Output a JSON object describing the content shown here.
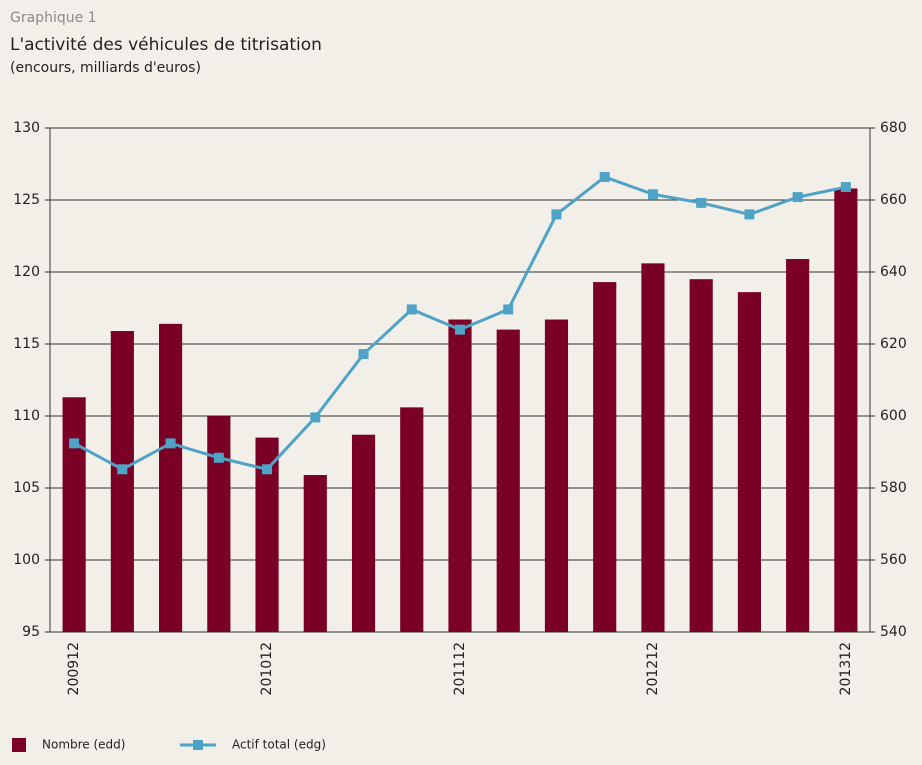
{
  "label": "Graphique 1",
  "chart_data": {
    "type": "combo",
    "title": "L'activité des véhicules de titrisation",
    "subtitle": "(encours, milliards d'euros)",
    "categories": [
      "200912",
      null,
      null,
      null,
      "201012",
      null,
      null,
      null,
      "201112",
      null,
      null,
      null,
      "201212",
      null,
      null,
      null,
      "201312"
    ],
    "series": [
      {
        "name": "Nombre (edd)",
        "kind": "bar",
        "axis": "y2",
        "color": "#7a0025",
        "values": [
          605.2,
          623.6,
          625.6,
          600,
          594,
          583.6,
          594.8,
          602.4,
          626.8,
          624,
          626.8,
          637.2,
          642.4,
          638,
          634.4,
          643.6,
          663.2
        ]
      },
      {
        "name": "Actif total (edg)",
        "kind": "line",
        "axis": "y",
        "color": "#4fa3c6",
        "values": [
          108.1,
          106.3,
          108.1,
          107.1,
          106.3,
          109.9,
          114.3,
          117.4,
          116.0,
          117.4,
          124.0,
          126.6,
          125.4,
          124.8,
          124.0,
          125.2,
          125.9
        ]
      }
    ],
    "ylim": [
      95,
      130
    ],
    "yticks": [
      95,
      100,
      105,
      110,
      115,
      120,
      125,
      130
    ],
    "y2lim": [
      540,
      680
    ],
    "y2ticks": [
      540,
      560,
      580,
      600,
      620,
      640,
      660,
      680
    ],
    "grid": true,
    "legend": "bottom"
  }
}
